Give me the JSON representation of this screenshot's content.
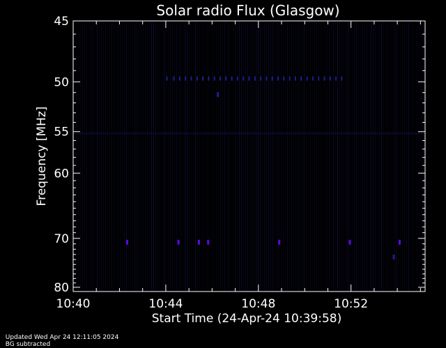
{
  "chart_data": {
    "type": "heatmap",
    "title": "Solar radio Flux (Glasgow)",
    "xlabel": "Start Time (24-Apr-24 10:39:58)",
    "ylabel": "Frequency [MHz]",
    "x_range_minutes": [
      0,
      15.2
    ],
    "x_ticks": [
      {
        "label": "10:40",
        "minutes": 0
      },
      {
        "label": "10:44",
        "minutes": 4
      },
      {
        "label": "10:48",
        "minutes": 8
      },
      {
        "label": "10:52",
        "minutes": 12
      }
    ],
    "y_range_mhz": [
      45,
      81
    ],
    "y_scale": "reciprocal",
    "y_ticks": [
      45,
      50,
      55,
      60,
      70,
      80
    ],
    "colormap": [
      "#000000",
      "#0a0a2a",
      "#141450",
      "#1e1e8c",
      "#5a0ae0"
    ],
    "background_color": "#000000",
    "axis_color": "#ffffff",
    "bursts": [
      {
        "time_min": 2.33,
        "freq_mhz": 70.7,
        "intensity": 1.0
      },
      {
        "time_min": 4.55,
        "freq_mhz": 70.7,
        "intensity": 1.0
      },
      {
        "time_min": 5.43,
        "freq_mhz": 70.7,
        "intensity": 1.0
      },
      {
        "time_min": 5.83,
        "freq_mhz": 70.7,
        "intensity": 1.0
      },
      {
        "time_min": 8.9,
        "freq_mhz": 70.7,
        "intensity": 1.0
      },
      {
        "time_min": 11.95,
        "freq_mhz": 70.7,
        "intensity": 1.0
      },
      {
        "time_min": 14.1,
        "freq_mhz": 70.7,
        "intensity": 1.0
      },
      {
        "time_min": 13.85,
        "freq_mhz": 73.5,
        "intensity": 0.6
      },
      {
        "time_min": 6.25,
        "freq_mhz": 51.2,
        "intensity": 0.6
      }
    ],
    "band_49_7_mhz_times_min": [
      4.05,
      4.35,
      4.6,
      4.85,
      5.1,
      5.35,
      5.6,
      5.85,
      6.1,
      6.35,
      6.6,
      6.85,
      7.1,
      7.35,
      7.6,
      7.85,
      8.1,
      8.35,
      8.6,
      8.85,
      9.1,
      9.35,
      9.6,
      9.85,
      10.1,
      10.35,
      10.6,
      10.85,
      11.1,
      11.35,
      11.6
    ]
  },
  "footer": {
    "updated": "Updated Wed Apr 24 12:11:05 2024",
    "note": "BG subtracted"
  }
}
